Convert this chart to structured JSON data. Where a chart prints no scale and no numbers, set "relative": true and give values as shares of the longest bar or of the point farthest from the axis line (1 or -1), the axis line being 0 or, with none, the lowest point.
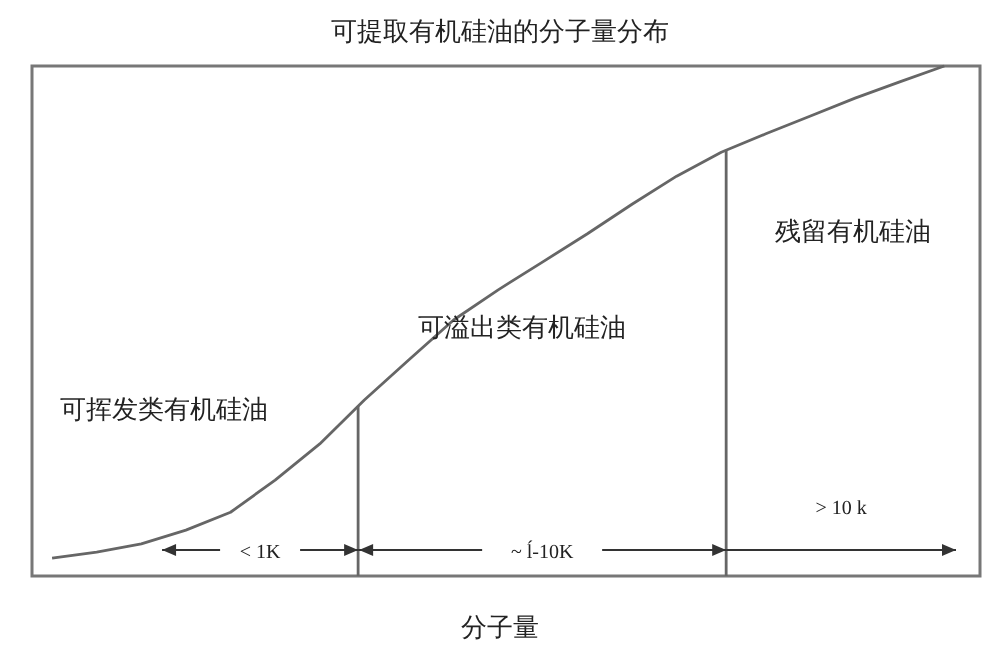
{
  "chart_data": {
    "type": "line",
    "title": "可提取有机硅油的分子量分布",
    "xlabel": "分子量",
    "relative": true,
    "color": "#666666",
    "categories": [
      null,
      null,
      null,
      null,
      null,
      null,
      null,
      null,
      null,
      null,
      null,
      null,
      null,
      null,
      null,
      null,
      null,
      null,
      null,
      null,
      null
    ],
    "values": [
      0.035,
      0.047,
      0.063,
      0.09,
      0.125,
      0.188,
      0.259,
      0.345,
      0.424,
      0.502,
      0.561,
      0.616,
      0.671,
      0.729,
      0.784,
      0.831,
      0.867,
      0.902,
      0.937,
      0.969,
      1.0
    ],
    "annotations": [
      "可挥发类有机硅油",
      "可溢出类有机硅油",
      "残留有机硅油",
      "< 1K",
      "~ ĺ-10K",
      "> 10 k"
    ]
  }
}
